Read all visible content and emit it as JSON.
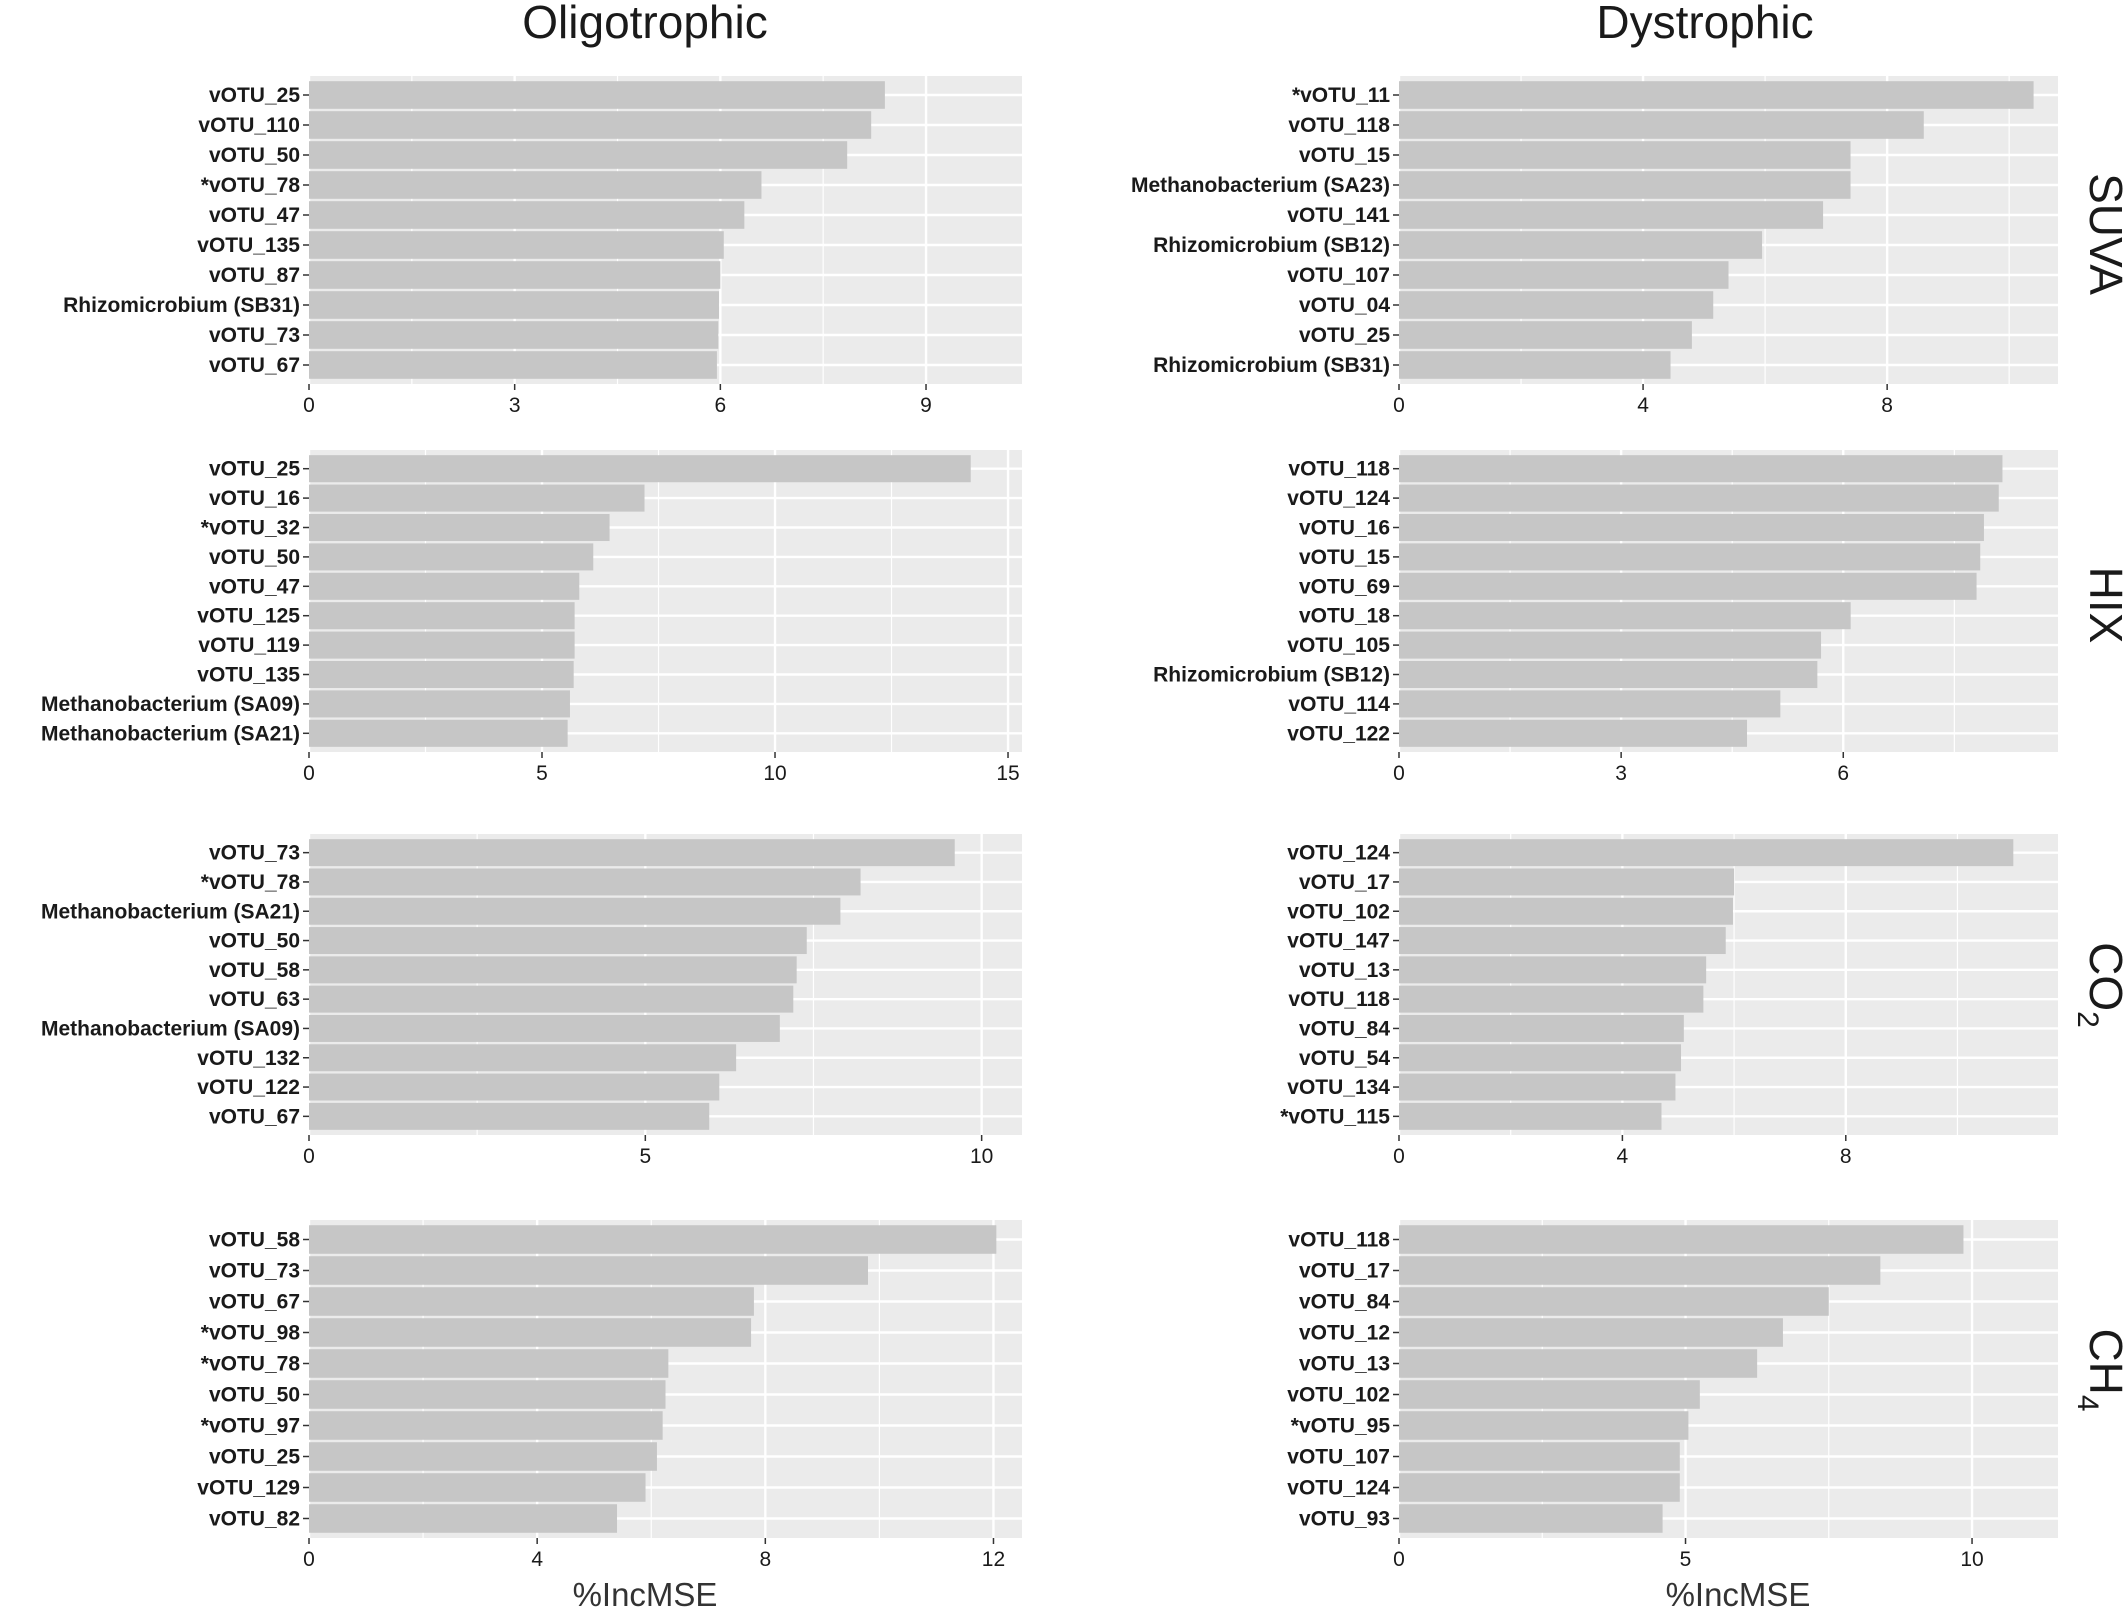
{
  "column_titles": [
    "Oligotrophic",
    "Dystrophic"
  ],
  "row_labels": [
    "SUVA",
    "HIX",
    "CO",
    "CH"
  ],
  "row_label_subscripts": [
    "",
    "",
    "2",
    "4"
  ],
  "x_axis_label": "%IncMSE",
  "colors": {
    "panel_bg": "#ebebeb",
    "grid": "#ffffff",
    "bar": "#c6c6c6",
    "text": "#1a1a1a"
  },
  "chart_data": [
    {
      "type": "bar",
      "orientation": "horizontal",
      "panel": "Oligotrophic / SUVA",
      "xlabel": "",
      "xlim": [
        0,
        10.4
      ],
      "xticks": [
        0,
        3,
        6,
        9
      ],
      "categories": [
        "vOTU_25",
        "vOTU_110",
        "vOTU_50",
        "*vOTU_78",
        "vOTU_47",
        "vOTU_135",
        "vOTU_87",
        "Rhizomicrobium (SB31)",
        "vOTU_73",
        "vOTU_67"
      ],
      "values": [
        8.4,
        8.2,
        7.85,
        6.6,
        6.35,
        6.05,
        6.0,
        5.98,
        5.97,
        5.95
      ]
    },
    {
      "type": "bar",
      "orientation": "horizontal",
      "panel": "Dystrophic / SUVA",
      "xlabel": "",
      "xlim": [
        0,
        10.8
      ],
      "xticks": [
        0,
        4,
        8
      ],
      "categories": [
        "*vOTU_11",
        "vOTU_118",
        "vOTU_15",
        "Methanobacterium (SA23)",
        "vOTU_141",
        "Rhizomicrobium (SB12)",
        "vOTU_107",
        "vOTU_04",
        "vOTU_25",
        "Rhizomicrobium (SB31)"
      ],
      "values": [
        10.4,
        8.6,
        7.4,
        7.4,
        6.95,
        5.95,
        5.4,
        5.15,
        4.8,
        4.45
      ]
    },
    {
      "type": "bar",
      "orientation": "horizontal",
      "panel": "Oligotrophic / HIX",
      "xlabel": "",
      "xlim": [
        0,
        15.3
      ],
      "xticks": [
        0,
        5,
        10,
        15
      ],
      "categories": [
        "vOTU_25",
        "vOTU_16",
        "*vOTU_32",
        "vOTU_50",
        "vOTU_47",
        "vOTU_125",
        "vOTU_119",
        "vOTU_135",
        "Methanobacterium (SA09)",
        "Methanobacterium (SA21)"
      ],
      "values": [
        14.2,
        7.2,
        6.45,
        6.1,
        5.8,
        5.7,
        5.7,
        5.68,
        5.6,
        5.55
      ]
    },
    {
      "type": "bar",
      "orientation": "horizontal",
      "panel": "Dystrophic / HIX",
      "xlabel": "",
      "xlim": [
        0,
        8.9
      ],
      "xticks": [
        0,
        3,
        6
      ],
      "categories": [
        "vOTU_118",
        "vOTU_124",
        "vOTU_16",
        "vOTU_15",
        "vOTU_69",
        "vOTU_18",
        "vOTU_105",
        "Rhizomicrobium (SB12)",
        "vOTU_114",
        "vOTU_122"
      ],
      "values": [
        8.15,
        8.1,
        7.9,
        7.85,
        7.8,
        6.1,
        5.7,
        5.65,
        5.15,
        4.7
      ]
    },
    {
      "type": "bar",
      "orientation": "horizontal",
      "panel": "Oligotrophic / CO2",
      "xlabel": "",
      "xlim": [
        0,
        10.6
      ],
      "xticks": [
        0,
        5,
        10
      ],
      "categories": [
        "vOTU_73",
        "*vOTU_78",
        "Methanobacterium (SA21)",
        "vOTU_50",
        "vOTU_58",
        "vOTU_63",
        "Methanobacterium (SA09)",
        "vOTU_132",
        "vOTU_122",
        "vOTU_67"
      ],
      "values": [
        9.6,
        8.2,
        7.9,
        7.4,
        7.25,
        7.2,
        7.0,
        6.35,
        6.1,
        5.95
      ]
    },
    {
      "type": "bar",
      "orientation": "horizontal",
      "panel": "Dystrophic / CO2",
      "xlabel": "",
      "xlim": [
        0,
        11.8
      ],
      "xticks": [
        0,
        4,
        8
      ],
      "categories": [
        "vOTU_124",
        "vOTU_17",
        "vOTU_102",
        "vOTU_147",
        "vOTU_13",
        "vOTU_118",
        "vOTU_84",
        "vOTU_54",
        "vOTU_134",
        "*vOTU_115"
      ],
      "values": [
        11.0,
        6.0,
        5.98,
        5.85,
        5.5,
        5.45,
        5.1,
        5.05,
        4.95,
        4.7
      ]
    },
    {
      "type": "bar",
      "orientation": "horizontal",
      "panel": "Oligotrophic / CH4",
      "xlabel": "%IncMSE",
      "xlim": [
        0,
        12.5
      ],
      "xticks": [
        0,
        4,
        8,
        12
      ],
      "categories": [
        "vOTU_58",
        "vOTU_73",
        "vOTU_67",
        "*vOTU_98",
        "*vOTU_78",
        "vOTU_50",
        "*vOTU_97",
        "vOTU_25",
        "vOTU_129",
        "vOTU_82"
      ],
      "values": [
        12.05,
        9.8,
        7.8,
        7.75,
        6.3,
        6.25,
        6.2,
        6.1,
        5.9,
        5.4
      ]
    },
    {
      "type": "bar",
      "orientation": "horizontal",
      "panel": "Dystrophic / CH4",
      "xlabel": "%IncMSE",
      "xlim": [
        0,
        11.5
      ],
      "xticks": [
        0,
        5,
        10
      ],
      "categories": [
        "vOTU_118",
        "vOTU_17",
        "vOTU_84",
        "vOTU_12",
        "vOTU_13",
        "vOTU_102",
        "*vOTU_95",
        "vOTU_107",
        "vOTU_124",
        "vOTU_93"
      ],
      "values": [
        9.85,
        8.4,
        7.5,
        6.7,
        6.25,
        5.25,
        5.05,
        4.9,
        4.9,
        4.6
      ]
    }
  ]
}
